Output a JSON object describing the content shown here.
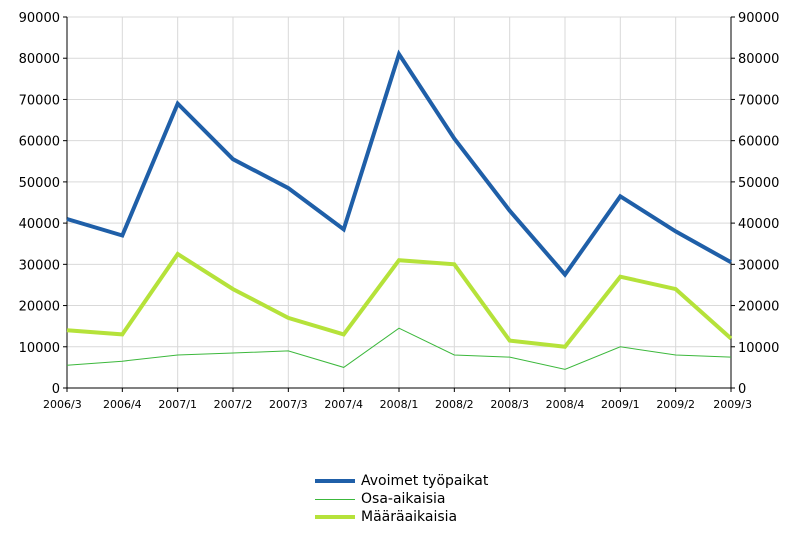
{
  "chart_data": {
    "type": "line",
    "categories": [
      "2006/3",
      "2006/4",
      "2007/1",
      "2007/2",
      "2007/3",
      "2007/4",
      "2008/1",
      "2008/2",
      "2008/3",
      "2008/4",
      "2009/1",
      "2009/2",
      "2009/3"
    ],
    "ylim": [
      0,
      90000
    ],
    "yticks": [
      0,
      10000,
      20000,
      30000,
      40000,
      50000,
      60000,
      70000,
      80000,
      90000
    ],
    "y_axis_left_and_right": true,
    "grid": true,
    "legend_position": "bottom",
    "series": [
      {
        "name": "Avoimet työpaikat",
        "color": "#1f5fa8",
        "values": [
          41000,
          37000,
          69000,
          55500,
          48500,
          38500,
          81000,
          60500,
          43000,
          27500,
          46500,
          38000,
          30500
        ]
      },
      {
        "name": "Osa-aikaisia",
        "color": "#3cb83c",
        "values": [
          5500,
          6500,
          8000,
          8500,
          9000,
          5000,
          14500,
          8000,
          7500,
          4500,
          10000,
          8000,
          7500
        ]
      },
      {
        "name": "Määräaikaisia",
        "color": "#b5e23a",
        "values": [
          14000,
          13000,
          32500,
          24000,
          17000,
          13000,
          31000,
          30000,
          11500,
          10000,
          27000,
          24000,
          12000
        ]
      }
    ]
  }
}
